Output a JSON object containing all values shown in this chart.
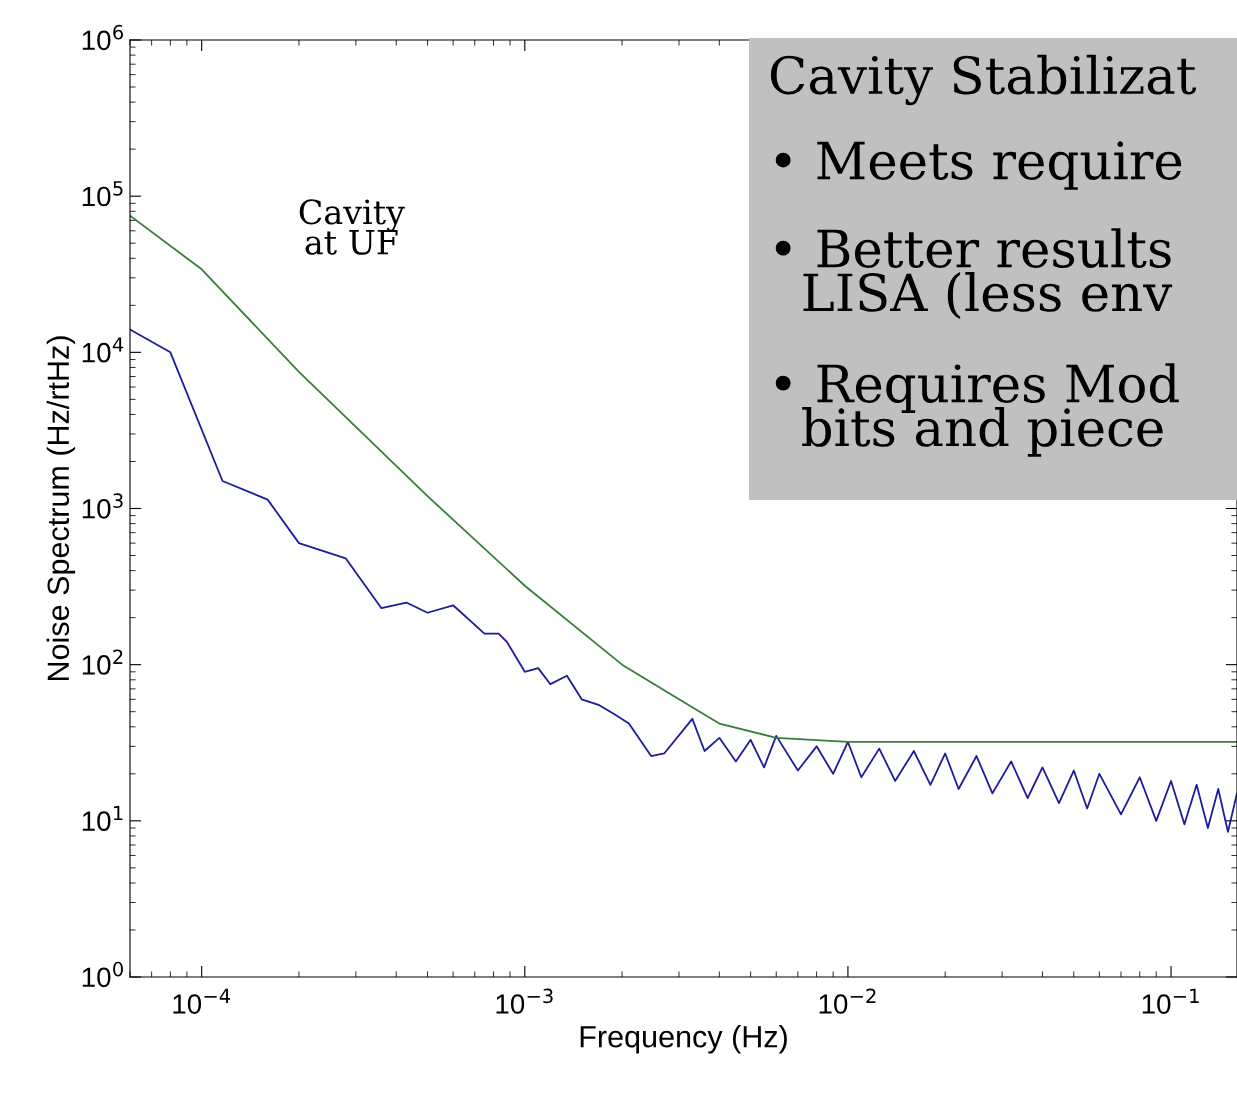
{
  "chart_data": {
    "type": "line",
    "xlabel": "Frequency (Hz)",
    "ylabel": "Noise Spectrum (Hz/rtHz)",
    "log": "xy",
    "xlim": [
      6e-05,
      0.16
    ],
    "ylim": [
      1,
      1000000
    ],
    "xticks": [
      {
        "value": 0.0001,
        "label": "10$^{−4}$"
      },
      {
        "value": 0.001,
        "label": "10$^{−3}$"
      },
      {
        "value": 0.01,
        "label": "10$^{−2}$"
      },
      {
        "value": 0.1,
        "label": "10$^{−1}$"
      }
    ],
    "yticks": [
      {
        "value": 1,
        "label": "10$^{0}$"
      },
      {
        "value": 10,
        "label": "10$^{1}$"
      },
      {
        "value": 100,
        "label": "10$^{2}$"
      },
      {
        "value": 1000,
        "label": "10$^{3}$"
      },
      {
        "value": 10000,
        "label": "10$^{4}$"
      },
      {
        "value": 100000,
        "label": "10$^{5}$"
      },
      {
        "value": 1000000,
        "label": "10$^{6}$"
      }
    ],
    "grid": false,
    "legend": false,
    "marker": "none",
    "line_style": "solid",
    "series": [
      {
        "color": "#1c1c9c",
        "x": [
          6e-05,
          8e-05,
          0.000116,
          0.00016,
          0.0002,
          0.000279,
          0.00036,
          0.00043,
          0.0005,
          0.0006,
          0.00075,
          0.00083,
          0.00088,
          0.001,
          0.0011,
          0.0012,
          0.00135,
          0.0015,
          0.0017,
          0.0019,
          0.0021,
          0.00246,
          0.0027,
          0.0033,
          0.0036,
          0.004,
          0.0045,
          0.005,
          0.0055,
          0.006,
          0.007,
          0.008,
          0.009,
          0.01,
          0.011,
          0.0125,
          0.014,
          0.016,
          0.018,
          0.02,
          0.022,
          0.025,
          0.028,
          0.032,
          0.036,
          0.04,
          0.045,
          0.05,
          0.055,
          0.06,
          0.07,
          0.08,
          0.09,
          0.1,
          0.11,
          0.12,
          0.13,
          0.14,
          0.15,
          0.16
        ],
        "values": [
          14000,
          10000,
          1500,
          1140,
          600,
          480,
          230,
          250,
          215,
          240,
          158,
          158,
          140,
          90,
          95,
          75,
          85,
          60,
          55,
          48,
          42,
          26,
          27,
          45,
          28,
          34,
          24,
          33,
          22,
          35,
          21,
          30,
          20,
          32,
          19,
          29,
          18,
          28,
          17,
          27,
          16,
          26,
          15,
          24,
          14,
          22,
          13,
          21,
          12,
          20,
          11,
          19,
          10,
          18,
          9.5,
          17,
          9,
          16,
          8.5,
          15
        ]
      },
      {
        "color": "#3a7d3a",
        "x": [
          6e-05,
          0.0001,
          0.0002,
          0.0005,
          0.001,
          0.002,
          0.003,
          0.004,
          0.006,
          0.01,
          0.16
        ],
        "values": [
          75000,
          34000,
          7500,
          1200,
          320,
          100,
          60,
          42,
          34,
          32,
          32
        ]
      }
    ],
    "annotations": [
      "Cavity\nat UF",
      "Cavity Stabilizat",
      "• Meets require",
      "• Better results\n  LISA (less env",
      "• Requires Mod\n  bits and piece"
    ]
  }
}
